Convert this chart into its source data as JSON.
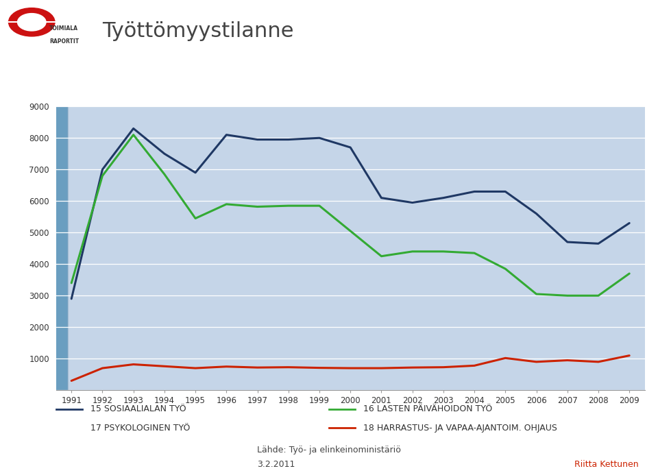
{
  "title": "Työttömyystilanne",
  "years": [
    1991,
    1992,
    1993,
    1994,
    1995,
    1996,
    1997,
    1998,
    1999,
    2000,
    2001,
    2002,
    2003,
    2004,
    2005,
    2006,
    2007,
    2008,
    2009
  ],
  "series_15": [
    2900,
    7000,
    8300,
    7500,
    6900,
    8100,
    7950,
    7950,
    8000,
    7700,
    6100,
    5950,
    6100,
    6300,
    6300,
    5600,
    4700,
    4650,
    5300
  ],
  "series_16": [
    3400,
    6800,
    8100,
    6850,
    5450,
    5900,
    5820,
    5850,
    5850,
    5050,
    4250,
    4400,
    4400,
    4350,
    3850,
    3050,
    3000,
    3000,
    3700
  ],
  "series_18": [
    300,
    700,
    820,
    760,
    700,
    750,
    720,
    730,
    710,
    700,
    700,
    720,
    730,
    780,
    1020,
    900,
    950,
    900,
    1100
  ],
  "color_15": "#1f3864",
  "color_16": "#33aa33",
  "color_18": "#cc2200",
  "label_15": "15 SOSIAALIALAN TYÖ",
  "label_16": "16 LASTEN PÄIVÄHOIDON TYÖ",
  "label_17": "17 PSYKOLOGINEN TYÖ",
  "label_18": "18 HARRASTUS- JA VAPAA-AJANTOIM. OHJAUS",
  "ylim_min": 0,
  "ylim_max": 9000,
  "yticks": [
    0,
    1000,
    2000,
    3000,
    4000,
    5000,
    6000,
    7000,
    8000,
    9000
  ],
  "source_text": "Lähde: Työ- ja elinkeinoministäriö",
  "date_text": "3.2.2011",
  "author_text": "Riitta Kettunen",
  "plot_bg_color": "#c5d5e8",
  "grid_color": "#ffffff",
  "fig_bg": "#ffffff"
}
